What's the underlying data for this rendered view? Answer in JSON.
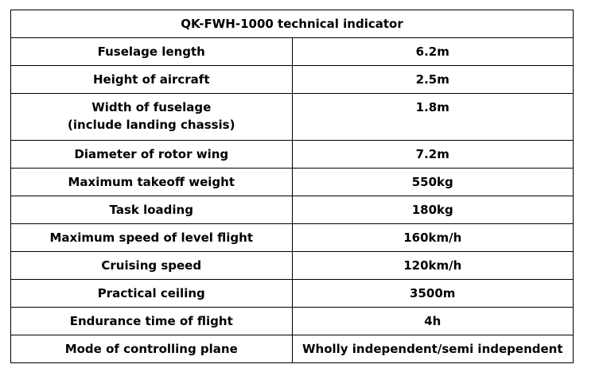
{
  "table": {
    "title": "QK-FWH-1000 technical indicator",
    "rows": [
      {
        "label": "Fuselage length",
        "value": "6.2m"
      },
      {
        "label": "Height of aircraft",
        "value": "2.5m"
      },
      {
        "label": "Width of fuselage",
        "label_line2": "(include landing chassis)",
        "value": "1.8m"
      },
      {
        "label": "Diameter of rotor wing",
        "value": "7.2m"
      },
      {
        "label": "Maximum takeoff weight",
        "value": "550kg"
      },
      {
        "label": "Task loading",
        "value": "180kg"
      },
      {
        "label": "Maximum speed of level flight",
        "value": "160km/h"
      },
      {
        "label": "Cruising speed",
        "value": "120km/h"
      },
      {
        "label": "Practical ceiling",
        "value": "3500m"
      },
      {
        "label": "Endurance time of flight",
        "value": "4h"
      },
      {
        "label": "Mode of controlling plane",
        "value": "Wholly independent/semi independent"
      }
    ]
  }
}
